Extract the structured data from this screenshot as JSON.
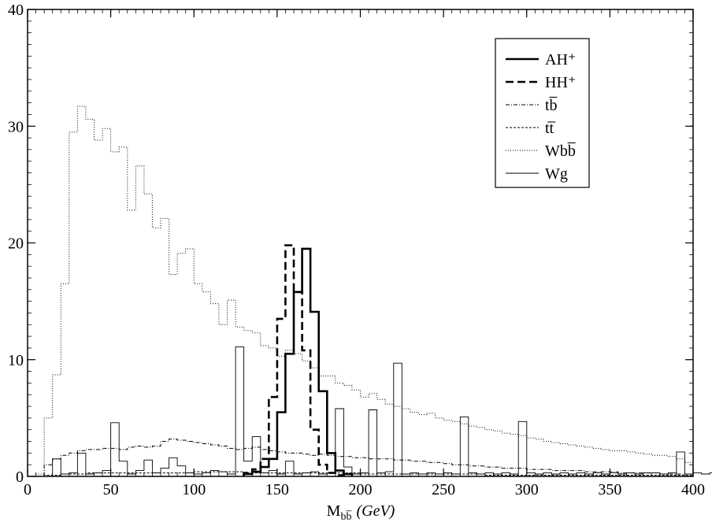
{
  "chart_data": {
    "type": "line",
    "title": "",
    "xlabel": {
      "main": "M",
      "sub": "bb̅",
      "unit": "(GeV)"
    },
    "ylabel": "",
    "xlim": [
      0,
      400
    ],
    "ylim": [
      0,
      40
    ],
    "x_ticks": [
      0,
      50,
      100,
      150,
      200,
      250,
      300,
      350,
      400
    ],
    "y_ticks": [
      0,
      10,
      20,
      30,
      40
    ],
    "x_minor_step": 5,
    "y_minor_step": 1,
    "bin_width": 5,
    "grid": false,
    "legend_position": "top-right",
    "series": [
      {
        "name": "AH⁺",
        "style": "thick-solid",
        "bin_start": 130,
        "values": [
          0.2,
          0.4,
          0.8,
          1.5,
          5.5,
          10.5,
          15.8,
          19.5,
          14.1,
          7.3,
          2.0,
          0.5,
          0.2
        ]
      },
      {
        "name": "HH⁺",
        "style": "thick-dashed",
        "bin_start": 130,
        "values": [
          0.3,
          0.6,
          1.5,
          6.8,
          13.5,
          19.8,
          15.8,
          10.8,
          4.0,
          1.0,
          0.3,
          0.1
        ]
      },
      {
        "name": "tb̅",
        "style": "dash-dot",
        "bin_start": 10,
        "values": [
          1.0,
          1.5,
          1.8,
          2.0,
          2.2,
          2.3,
          2.3,
          2.4,
          2.4,
          2.3,
          2.5,
          2.6,
          2.5,
          2.6,
          3.0,
          3.2,
          3.1,
          3.0,
          2.9,
          2.8,
          2.7,
          2.6,
          2.4,
          2.3,
          2.4,
          2.5,
          2.3,
          2.2,
          2.1,
          2.0,
          2.0,
          1.9,
          1.8,
          1.9,
          1.8,
          1.7,
          1.7,
          1.6,
          1.6,
          1.5,
          1.5,
          1.5,
          1.4,
          1.4,
          1.3,
          1.3,
          1.2,
          1.2,
          1.1,
          1.0,
          1.0,
          0.9,
          0.9,
          0.8,
          0.8,
          0.7,
          0.7,
          0.7,
          0.6,
          0.6,
          0.6,
          0.5,
          0.5,
          0.5,
          0.5,
          0.4,
          0.4,
          0.4,
          0.4,
          0.3,
          0.3,
          0.3,
          0.3,
          0.3,
          0.2,
          0.2,
          0.2,
          0.2
        ]
      },
      {
        "name": "tt̅",
        "style": "dashed",
        "bin_start": 10,
        "values": [
          0.1,
          0.1,
          0.2,
          0.2,
          0.2,
          0.3,
          0.3,
          0.3,
          0.3,
          0.3,
          0.3,
          0.3,
          0.3,
          0.3,
          0.3,
          0.3,
          0.3,
          0.3,
          0.4,
          0.4,
          0.4,
          0.4,
          0.4,
          0.4,
          0.3,
          0.3,
          0.3,
          0.3,
          0.3,
          0.3,
          0.3,
          0.3,
          0.3,
          0.3,
          0.3,
          0.3,
          0.3,
          0.3,
          0.2,
          0.2,
          0.2,
          0.2,
          0.2,
          0.2,
          0.2,
          0.2,
          0.2,
          0.2,
          0.2,
          0.2,
          0.2,
          0.2,
          0.2,
          0.1,
          0.1,
          0.1,
          0.1,
          0.1,
          0.1,
          0.1,
          0.1,
          0.1,
          0.1,
          0.1,
          0.1,
          0.1,
          0.1,
          0.1,
          0.1,
          0.1,
          0.1,
          0.1,
          0.1,
          0.1,
          0.1,
          0.1,
          0.1,
          0.1
        ]
      },
      {
        "name": "Wbb̅",
        "style": "dotted",
        "bin_start": 5,
        "values": [
          0.2,
          5.0,
          8.7,
          16.5,
          29.5,
          31.7,
          30.6,
          28.8,
          29.8,
          27.8,
          28.2,
          22.8,
          26.6,
          24.2,
          21.3,
          22.1,
          17.3,
          19.1,
          19.5,
          16.5,
          15.8,
          14.8,
          13.0,
          15.1,
          12.8,
          12.5,
          12.3,
          11.2,
          11.0,
          10.3,
          10.8,
          10.5,
          9.9,
          9.3,
          8.6,
          8.6,
          8.0,
          7.8,
          7.4,
          6.8,
          7.1,
          6.6,
          6.2,
          6.0,
          5.8,
          5.5,
          5.3,
          5.4,
          5.0,
          4.8,
          4.7,
          4.5,
          4.3,
          4.2,
          4.0,
          3.9,
          3.7,
          3.6,
          3.5,
          3.3,
          3.2,
          3.0,
          2.9,
          2.8,
          2.7,
          2.6,
          2.5,
          2.4,
          2.3,
          2.2,
          2.2,
          2.1,
          2.0,
          1.9,
          1.8,
          1.8,
          1.7,
          1.5,
          1.2
        ]
      },
      {
        "name": "Wg",
        "style": "thin-solid",
        "bin_start": 10,
        "values": [
          0.0,
          1.5,
          0.2,
          0.3,
          2.0,
          0.2,
          0.3,
          0.5,
          4.6,
          1.3,
          0.2,
          0.5,
          1.4,
          0.3,
          0.7,
          1.6,
          0.9,
          0.3,
          0.2,
          0.3,
          0.5,
          0.4,
          0.2,
          11.1,
          1.3,
          3.4,
          0.3,
          0.5,
          0.2,
          1.3,
          0.2,
          0.3,
          0.4,
          0.2,
          0.3,
          5.8,
          0.8,
          0.2,
          0.3,
          5.7,
          0.3,
          0.4,
          9.7,
          0.2,
          0.3,
          0.2,
          0.3,
          0.2,
          0.3,
          0.2,
          5.1,
          0.3,
          0.2,
          0.3,
          0.2,
          0.3,
          0.2,
          4.7,
          0.3,
          0.2,
          0.3,
          0.2,
          0.3,
          0.2,
          0.3,
          0.2,
          0.3,
          0.2,
          0.3,
          0.2,
          0.3,
          0.2,
          0.3,
          0.3,
          0.2,
          0.3,
          2.1,
          0.2,
          0.3,
          0.2,
          0.3,
          0.2,
          0.3,
          0.2,
          0.3,
          0.2,
          0.3,
          0.7,
          0.3,
          0.2
        ]
      }
    ]
  }
}
